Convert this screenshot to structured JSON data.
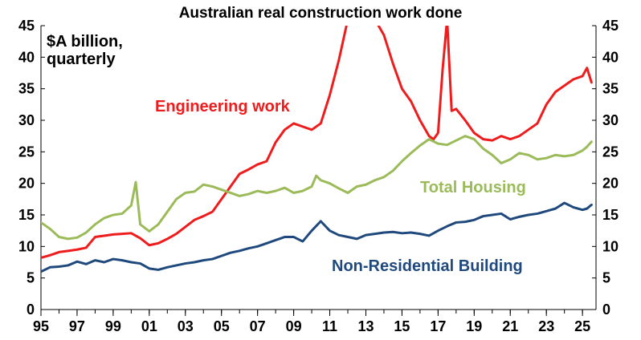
{
  "chart_data": {
    "type": "line",
    "title": "Australian real construction work done",
    "unit_label": [
      "$A billion,",
      "quarterly"
    ],
    "xlabel": "",
    "ylabel": "",
    "x_range": [
      1995,
      2025.75
    ],
    "ylim": [
      0,
      45
    ],
    "y_ticks": [
      "0",
      "5",
      "10",
      "15",
      "20",
      "25",
      "30",
      "35",
      "40",
      "45"
    ],
    "x_ticks": [
      {
        "label": "95",
        "year": 1995
      },
      {
        "label": "97",
        "year": 1997
      },
      {
        "label": "99",
        "year": 1999
      },
      {
        "label": "01",
        "year": 2001
      },
      {
        "label": "03",
        "year": 2003
      },
      {
        "label": "05",
        "year": 2005
      },
      {
        "label": "07",
        "year": 2007
      },
      {
        "label": "09",
        "year": 2009
      },
      {
        "label": "11",
        "year": 2011
      },
      {
        "label": "13",
        "year": 2013
      },
      {
        "label": "15",
        "year": 2015
      },
      {
        "label": "17",
        "year": 2017
      },
      {
        "label": "19",
        "year": 2019
      },
      {
        "label": "21",
        "year": 2021
      },
      {
        "label": "23",
        "year": 2023
      },
      {
        "label": "25",
        "year": 2025
      }
    ],
    "grid": false,
    "legend": "none (series labelled directly on chart)",
    "series": [
      {
        "name": "Engineering work",
        "color": "#ee1c1c",
        "points": [
          [
            1995.0,
            8.2
          ],
          [
            1995.5,
            8.6
          ],
          [
            1996.0,
            9.1
          ],
          [
            1996.5,
            9.3
          ],
          [
            1997.0,
            9.5
          ],
          [
            1997.5,
            9.8
          ],
          [
            1998.0,
            11.5
          ],
          [
            1998.5,
            11.7
          ],
          [
            1999.0,
            11.9
          ],
          [
            1999.5,
            12.0
          ],
          [
            2000.0,
            12.1
          ],
          [
            2000.5,
            11.3
          ],
          [
            2001.0,
            10.2
          ],
          [
            2001.5,
            10.5
          ],
          [
            2002.0,
            11.2
          ],
          [
            2002.5,
            12.0
          ],
          [
            2003.0,
            13.1
          ],
          [
            2003.5,
            14.2
          ],
          [
            2004.0,
            14.8
          ],
          [
            2004.5,
            15.5
          ],
          [
            2005.0,
            17.5
          ],
          [
            2005.5,
            19.5
          ],
          [
            2006.0,
            21.5
          ],
          [
            2006.5,
            22.2
          ],
          [
            2007.0,
            23.0
          ],
          [
            2007.5,
            23.5
          ],
          [
            2008.0,
            26.5
          ],
          [
            2008.5,
            28.5
          ],
          [
            2009.0,
            29.5
          ],
          [
            2009.5,
            29.0
          ],
          [
            2010.0,
            28.5
          ],
          [
            2010.5,
            29.5
          ],
          [
            2011.0,
            34.0
          ],
          [
            2011.5,
            39.5
          ],
          [
            2012.0,
            46.0
          ],
          [
            2012.5,
            50.0
          ],
          [
            2013.0,
            49.0
          ],
          [
            2013.5,
            46.0
          ],
          [
            2014.0,
            43.5
          ],
          [
            2014.5,
            39.0
          ],
          [
            2015.0,
            35.0
          ],
          [
            2015.5,
            33.0
          ],
          [
            2016.0,
            30.0
          ],
          [
            2016.5,
            27.5
          ],
          [
            2016.75,
            27.0
          ],
          [
            2017.0,
            28.0
          ],
          [
            2017.25,
            38.0
          ],
          [
            2017.5,
            46.0
          ],
          [
            2017.75,
            31.5
          ],
          [
            2018.0,
            31.8
          ],
          [
            2018.5,
            30.0
          ],
          [
            2019.0,
            28.0
          ],
          [
            2019.5,
            27.0
          ],
          [
            2020.0,
            26.8
          ],
          [
            2020.5,
            27.5
          ],
          [
            2021.0,
            27.0
          ],
          [
            2021.5,
            27.5
          ],
          [
            2022.0,
            28.5
          ],
          [
            2022.5,
            29.5
          ],
          [
            2023.0,
            32.5
          ],
          [
            2023.5,
            34.5
          ],
          [
            2024.0,
            35.5
          ],
          [
            2024.5,
            36.5
          ],
          [
            2025.0,
            37.0
          ],
          [
            2025.25,
            38.3
          ],
          [
            2025.5,
            36.0
          ]
        ]
      },
      {
        "name": "Total Housing",
        "color": "#9bbb59",
        "points": [
          [
            1995.0,
            13.8
          ],
          [
            1995.5,
            12.8
          ],
          [
            1996.0,
            11.5
          ],
          [
            1996.5,
            11.2
          ],
          [
            1997.0,
            11.4
          ],
          [
            1997.5,
            12.2
          ],
          [
            1998.0,
            13.5
          ],
          [
            1998.5,
            14.5
          ],
          [
            1999.0,
            15.0
          ],
          [
            1999.5,
            15.2
          ],
          [
            2000.0,
            16.5
          ],
          [
            2000.25,
            20.2
          ],
          [
            2000.5,
            13.5
          ],
          [
            2001.0,
            12.4
          ],
          [
            2001.5,
            13.5
          ],
          [
            2002.0,
            15.5
          ],
          [
            2002.5,
            17.5
          ],
          [
            2003.0,
            18.5
          ],
          [
            2003.5,
            18.7
          ],
          [
            2004.0,
            19.8
          ],
          [
            2004.5,
            19.5
          ],
          [
            2005.0,
            19.0
          ],
          [
            2005.5,
            18.5
          ],
          [
            2006.0,
            18.0
          ],
          [
            2006.5,
            18.3
          ],
          [
            2007.0,
            18.8
          ],
          [
            2007.5,
            18.5
          ],
          [
            2008.0,
            18.8
          ],
          [
            2008.5,
            19.3
          ],
          [
            2009.0,
            18.5
          ],
          [
            2009.5,
            18.8
          ],
          [
            2010.0,
            19.5
          ],
          [
            2010.25,
            21.2
          ],
          [
            2010.5,
            20.5
          ],
          [
            2011.0,
            20.0
          ],
          [
            2011.5,
            19.2
          ],
          [
            2012.0,
            18.5
          ],
          [
            2012.5,
            19.5
          ],
          [
            2013.0,
            19.8
          ],
          [
            2013.5,
            20.5
          ],
          [
            2014.0,
            21.0
          ],
          [
            2014.5,
            22.0
          ],
          [
            2015.0,
            23.5
          ],
          [
            2015.5,
            24.8
          ],
          [
            2016.0,
            26.0
          ],
          [
            2016.5,
            27.0
          ],
          [
            2017.0,
            26.3
          ],
          [
            2017.5,
            26.1
          ],
          [
            2018.0,
            26.8
          ],
          [
            2018.5,
            27.5
          ],
          [
            2019.0,
            27.0
          ],
          [
            2019.5,
            25.5
          ],
          [
            2020.0,
            24.5
          ],
          [
            2020.5,
            23.2
          ],
          [
            2021.0,
            23.8
          ],
          [
            2021.5,
            24.8
          ],
          [
            2022.0,
            24.5
          ],
          [
            2022.5,
            23.8
          ],
          [
            2023.0,
            24.0
          ],
          [
            2023.5,
            24.5
          ],
          [
            2024.0,
            24.3
          ],
          [
            2024.5,
            24.5
          ],
          [
            2025.0,
            25.2
          ],
          [
            2025.25,
            25.8
          ],
          [
            2025.5,
            26.6
          ]
        ]
      },
      {
        "name": "Non-Residential Building",
        "color": "#1f497d",
        "points": [
          [
            1995.0,
            6.0
          ],
          [
            1995.5,
            6.7
          ],
          [
            1996.0,
            6.8
          ],
          [
            1996.5,
            7.0
          ],
          [
            1997.0,
            7.6
          ],
          [
            1997.5,
            7.2
          ],
          [
            1998.0,
            7.8
          ],
          [
            1998.5,
            7.5
          ],
          [
            1999.0,
            8.0
          ],
          [
            1999.5,
            7.8
          ],
          [
            2000.0,
            7.5
          ],
          [
            2000.5,
            7.3
          ],
          [
            2001.0,
            6.5
          ],
          [
            2001.5,
            6.3
          ],
          [
            2002.0,
            6.7
          ],
          [
            2002.5,
            7.0
          ],
          [
            2003.0,
            7.3
          ],
          [
            2003.5,
            7.5
          ],
          [
            2004.0,
            7.8
          ],
          [
            2004.5,
            8.0
          ],
          [
            2005.0,
            8.5
          ],
          [
            2005.5,
            9.0
          ],
          [
            2006.0,
            9.3
          ],
          [
            2006.5,
            9.7
          ],
          [
            2007.0,
            10.0
          ],
          [
            2007.5,
            10.5
          ],
          [
            2008.0,
            11.0
          ],
          [
            2008.5,
            11.5
          ],
          [
            2009.0,
            11.5
          ],
          [
            2009.5,
            10.8
          ],
          [
            2010.0,
            12.5
          ],
          [
            2010.5,
            14.0
          ],
          [
            2011.0,
            12.5
          ],
          [
            2011.5,
            11.8
          ],
          [
            2012.0,
            11.5
          ],
          [
            2012.5,
            11.2
          ],
          [
            2013.0,
            11.8
          ],
          [
            2013.5,
            12.0
          ],
          [
            2014.0,
            12.2
          ],
          [
            2014.5,
            12.3
          ],
          [
            2015.0,
            12.1
          ],
          [
            2015.5,
            12.2
          ],
          [
            2016.0,
            12.0
          ],
          [
            2016.5,
            11.7
          ],
          [
            2017.0,
            12.5
          ],
          [
            2017.5,
            13.2
          ],
          [
            2018.0,
            13.8
          ],
          [
            2018.5,
            13.9
          ],
          [
            2019.0,
            14.2
          ],
          [
            2019.5,
            14.8
          ],
          [
            2020.0,
            15.0
          ],
          [
            2020.5,
            15.2
          ],
          [
            2021.0,
            14.3
          ],
          [
            2021.5,
            14.7
          ],
          [
            2022.0,
            15.0
          ],
          [
            2022.5,
            15.2
          ],
          [
            2023.0,
            15.6
          ],
          [
            2023.5,
            16.0
          ],
          [
            2024.0,
            16.9
          ],
          [
            2024.5,
            16.2
          ],
          [
            2025.0,
            15.8
          ],
          [
            2025.25,
            16.0
          ],
          [
            2025.5,
            16.6
          ]
        ]
      }
    ],
    "series_labels": [
      {
        "text": "Engineering work",
        "color": "#ee1c1c"
      },
      {
        "text": "Total Housing",
        "color": "#9bbb59"
      },
      {
        "text": "Non-Residential Building",
        "color": "#1f497d"
      }
    ]
  }
}
